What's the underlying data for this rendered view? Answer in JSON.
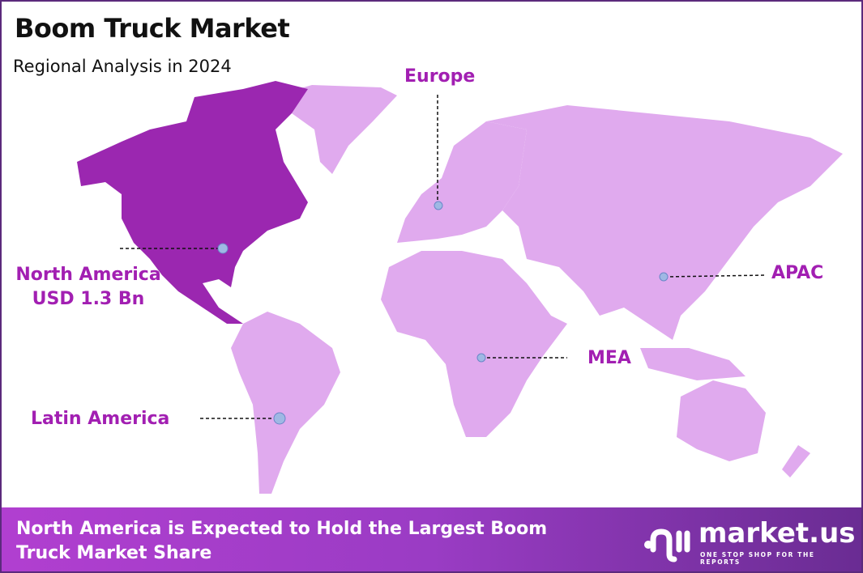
{
  "header": {
    "title": "Boom Truck Market",
    "subtitle": "Regional Analysis in 2024"
  },
  "colors": {
    "highlight_region": "#9b27b0",
    "other_regions": "#e0aaee",
    "label": "#a21fb2",
    "marker": "#9fb8e4",
    "footer_start": "#b13fd0",
    "footer_end": "#6a2c93"
  },
  "regions": [
    {
      "name": "North America",
      "value": "USD 1.3 Bn",
      "highlighted": true
    },
    {
      "name": "Europe",
      "highlighted": false
    },
    {
      "name": "APAC",
      "highlighted": false
    },
    {
      "name": "MEA",
      "highlighted": false
    },
    {
      "name": "Latin America",
      "highlighted": false
    }
  ],
  "footer": {
    "text": "North America is Expected to Hold the Largest Boom Truck Market Share",
    "logo_word": "market.us",
    "logo_tagline": "ONE STOP SHOP FOR THE REPORTS"
  }
}
